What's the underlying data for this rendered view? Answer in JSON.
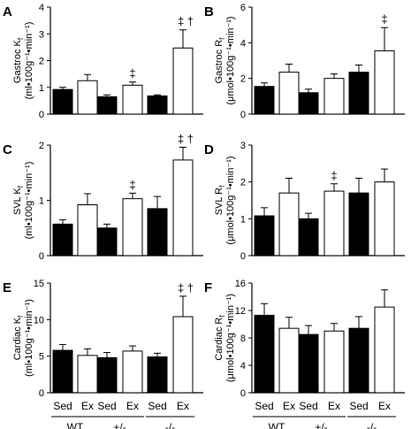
{
  "colors": {
    "sed": "#000000",
    "ex": "#ffffff",
    "stroke": "#000000"
  },
  "groups": [
    "WT",
    "+/-",
    "-/-"
  ],
  "conditions": [
    "Sed",
    "Ex",
    "Sed",
    "Ex",
    "Sed",
    "Ex"
  ],
  "chart_data": [
    {
      "type": "bar",
      "panel": "A",
      "ylabel_main": "Gastroc K",
      "ylabel_sub": "f",
      "ylabel_units": "(ml•100g⁻¹•min⁻¹)",
      "ylim": [
        0,
        4
      ],
      "yticks": [
        "0",
        "1",
        "2",
        "3",
        "4"
      ],
      "series": [
        {
          "name": "Sed",
          "values": [
            0.92,
            0.65,
            0.68
          ],
          "errors": [
            0.08,
            0.07,
            0.04
          ]
        },
        {
          "name": "Ex",
          "values": [
            1.25,
            1.08,
            2.47
          ],
          "errors": [
            0.23,
            0.12,
            0.68
          ]
        }
      ],
      "annotations": [
        {
          "bar": 3,
          "text": "‡"
        },
        {
          "bar": 5,
          "text": "‡ †"
        }
      ]
    },
    {
      "type": "bar",
      "panel": "B",
      "ylabel_main": "Gastroc R",
      "ylabel_sub": "f",
      "ylabel_units": "(μmol•100g⁻¹•min⁻¹)",
      "ylim": [
        0,
        6
      ],
      "yticks": [
        "0",
        "2",
        "4",
        "6"
      ],
      "series": [
        {
          "name": "Sed",
          "values": [
            1.55,
            1.2,
            2.35
          ],
          "errors": [
            0.2,
            0.2,
            0.4
          ]
        },
        {
          "name": "Ex",
          "values": [
            2.35,
            2.0,
            3.55
          ],
          "errors": [
            0.45,
            0.25,
            1.3
          ]
        }
      ],
      "annotations": [
        {
          "bar": 5,
          "text": "‡"
        }
      ]
    },
    {
      "type": "bar",
      "panel": "C",
      "ylabel_main": "SVL K",
      "ylabel_sub": "f",
      "ylabel_units": "(ml•100g⁻¹•min⁻¹)",
      "ylim": [
        0,
        2
      ],
      "yticks": [
        "0",
        "1",
        "2"
      ],
      "series": [
        {
          "name": "Sed",
          "values": [
            0.57,
            0.5,
            0.85
          ],
          "errors": [
            0.08,
            0.07,
            0.22
          ]
        },
        {
          "name": "Ex",
          "values": [
            0.92,
            1.03,
            1.73
          ],
          "errors": [
            0.2,
            0.1,
            0.23
          ]
        }
      ],
      "annotations": [
        {
          "bar": 3,
          "text": "‡"
        },
        {
          "bar": 5,
          "text": "‡ †"
        }
      ]
    },
    {
      "type": "bar",
      "panel": "D",
      "ylabel_main": "SVL R",
      "ylabel_sub": "f",
      "ylabel_units": "(μmol•100g⁻¹•min⁻¹)",
      "ylim": [
        0,
        3
      ],
      "yticks": [
        "0",
        "1",
        "2",
        "3"
      ],
      "series": [
        {
          "name": "Sed",
          "values": [
            1.08,
            1.0,
            1.7
          ],
          "errors": [
            0.22,
            0.15,
            0.4
          ]
        },
        {
          "name": "Ex",
          "values": [
            1.7,
            1.75,
            2.0
          ],
          "errors": [
            0.4,
            0.2,
            0.35
          ]
        }
      ],
      "annotations": [
        {
          "bar": 3,
          "text": "‡"
        }
      ]
    },
    {
      "type": "bar",
      "panel": "E",
      "ylabel_main": "Cardiac K",
      "ylabel_sub": "f",
      "ylabel_units": "(ml•100g⁻¹•min⁻¹)",
      "ylim": [
        0,
        15
      ],
      "yticks": [
        "0",
        "5",
        "10",
        "15"
      ],
      "series": [
        {
          "name": "Sed",
          "values": [
            5.8,
            4.8,
            4.9
          ],
          "errors": [
            0.8,
            0.7,
            0.5
          ]
        },
        {
          "name": "Ex",
          "values": [
            5.1,
            5.7,
            10.4
          ],
          "errors": [
            0.9,
            0.7,
            2.8
          ]
        }
      ],
      "annotations": [
        {
          "bar": 5,
          "text": "‡ †"
        }
      ]
    },
    {
      "type": "bar",
      "panel": "F",
      "ylabel_main": "Cardiac R",
      "ylabel_sub": "f",
      "ylabel_units": "(μmol•100g⁻¹•min⁻¹)",
      "ylim": [
        0,
        16
      ],
      "yticks": [
        "0",
        "4",
        "8",
        "12",
        "16"
      ],
      "series": [
        {
          "name": "Sed",
          "values": [
            11.3,
            8.5,
            9.4
          ],
          "errors": [
            1.7,
            1.3,
            1.7
          ]
        },
        {
          "name": "Ex",
          "values": [
            9.4,
            9.0,
            12.5
          ],
          "errors": [
            1.6,
            1.1,
            2.5
          ]
        }
      ],
      "annotations": []
    }
  ]
}
